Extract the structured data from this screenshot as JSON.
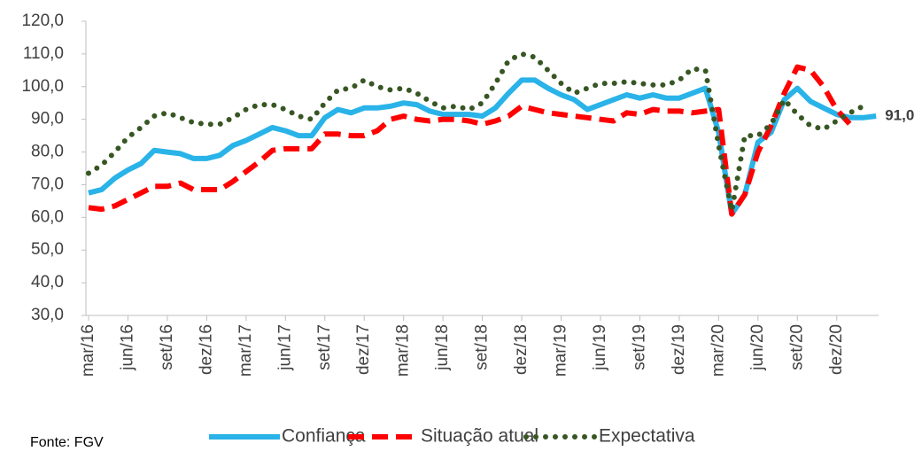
{
  "chart_data": {
    "type": "line",
    "source": "Fonte: FGV",
    "categories": [
      "mar/16",
      null,
      null,
      "jun/16",
      null,
      null,
      "set/16",
      null,
      null,
      "dez/16",
      null,
      null,
      "mar/17",
      null,
      null,
      "jun/17",
      null,
      null,
      "set/17",
      null,
      null,
      "dez/17",
      null,
      null,
      "mar/18",
      null,
      null,
      "jun/18",
      null,
      null,
      "set/18",
      null,
      null,
      "dez/18",
      null,
      null,
      "mar/19",
      null,
      null,
      "jun/19",
      null,
      null,
      "set/19",
      null,
      null,
      "dez/19",
      null,
      null,
      "mar/20",
      null,
      null,
      "jun/20",
      null,
      null,
      "set/20",
      null,
      null,
      "dez/20",
      null,
      null,
      null
    ],
    "series": [
      {
        "name": "Confiança",
        "color": "#29b3e8",
        "style": "solid",
        "values": [
          67.5,
          68.5,
          72,
          74.5,
          76.5,
          80.5,
          80,
          79.5,
          78,
          78,
          79,
          82,
          83.5,
          85.5,
          87.5,
          86.5,
          85,
          85,
          90.5,
          93,
          92,
          93.5,
          93.5,
          94,
          95,
          94.5,
          92.5,
          91.5,
          91.5,
          91.5,
          91,
          93.5,
          98,
          102,
          102,
          99.5,
          97.5,
          96,
          93,
          94.5,
          96,
          97.5,
          96.5,
          97.5,
          96.5,
          96.5,
          98,
          99.5,
          86,
          61,
          67,
          83,
          86,
          96,
          99.5,
          95.5,
          93.5,
          91.5,
          90.5,
          90.5,
          91.0
        ],
        "value_labels": [
          null,
          null,
          null,
          null,
          null,
          null,
          null,
          null,
          null,
          null,
          null,
          null,
          null,
          null,
          null,
          null,
          null,
          null,
          null,
          null,
          null,
          null,
          null,
          null,
          null,
          null,
          null,
          null,
          null,
          null,
          null,
          null,
          null,
          null,
          null,
          null,
          null,
          null,
          null,
          null,
          null,
          null,
          null,
          null,
          null,
          null,
          null,
          null,
          null,
          null,
          null,
          null,
          null,
          null,
          null,
          null,
          null,
          null,
          null,
          null,
          "91,0"
        ]
      },
      {
        "name": "Situação atual",
        "color": "#ff0000",
        "style": "dashed",
        "values": [
          63,
          62.5,
          63.5,
          65.5,
          67.5,
          69.5,
          69.5,
          70.5,
          68.5,
          68.5,
          68.5,
          71,
          74,
          77,
          80.5,
          81,
          81,
          81,
          85.5,
          85.5,
          85,
          85,
          86.5,
          90,
          91,
          90,
          89.5,
          90,
          90,
          89.5,
          88.5,
          89.5,
          91,
          94,
          93,
          92,
          91.5,
          91,
          90.5,
          90,
          89.5,
          92,
          91.5,
          93,
          92.5,
          92.5,
          92,
          92.5,
          93,
          61,
          67,
          80,
          88,
          98,
          106,
          105,
          100,
          93,
          88.5,
          null,
          null
        ]
      },
      {
        "name": "Expectativa",
        "color": "#375623",
        "style": "dotted",
        "values": [
          73.5,
          76,
          80,
          84.5,
          87.5,
          91,
          92,
          90.5,
          89,
          88.5,
          88.5,
          90.5,
          93,
          94.5,
          94.5,
          93,
          91,
          90,
          95,
          99,
          99.5,
          102,
          100,
          99,
          99.5,
          98,
          95.5,
          93.5,
          94,
          93,
          95,
          101,
          108,
          110,
          109,
          105,
          101,
          98,
          99.5,
          101,
          101,
          101.5,
          101,
          100.5,
          100.5,
          102,
          105.5,
          105,
          82,
          62,
          85,
          85,
          88.5,
          96,
          91.5,
          88,
          87,
          89.5,
          92,
          94,
          null
        ]
      }
    ],
    "ylim": [
      30,
      120
    ],
    "yticks": [
      {
        "value": 30,
        "label": "30,0"
      },
      {
        "value": 40,
        "label": "40,0"
      },
      {
        "value": 50,
        "label": "50,0"
      },
      {
        "value": 60,
        "label": "60,0"
      },
      {
        "value": 70,
        "label": "70,0"
      },
      {
        "value": 80,
        "label": "80,0"
      },
      {
        "value": 90,
        "label": "90,0"
      },
      {
        "value": 100,
        "label": "100,0"
      },
      {
        "value": 110,
        "label": "110,0"
      },
      {
        "value": 120,
        "label": "120,0"
      }
    ],
    "grid": false,
    "legend": "bottom"
  }
}
